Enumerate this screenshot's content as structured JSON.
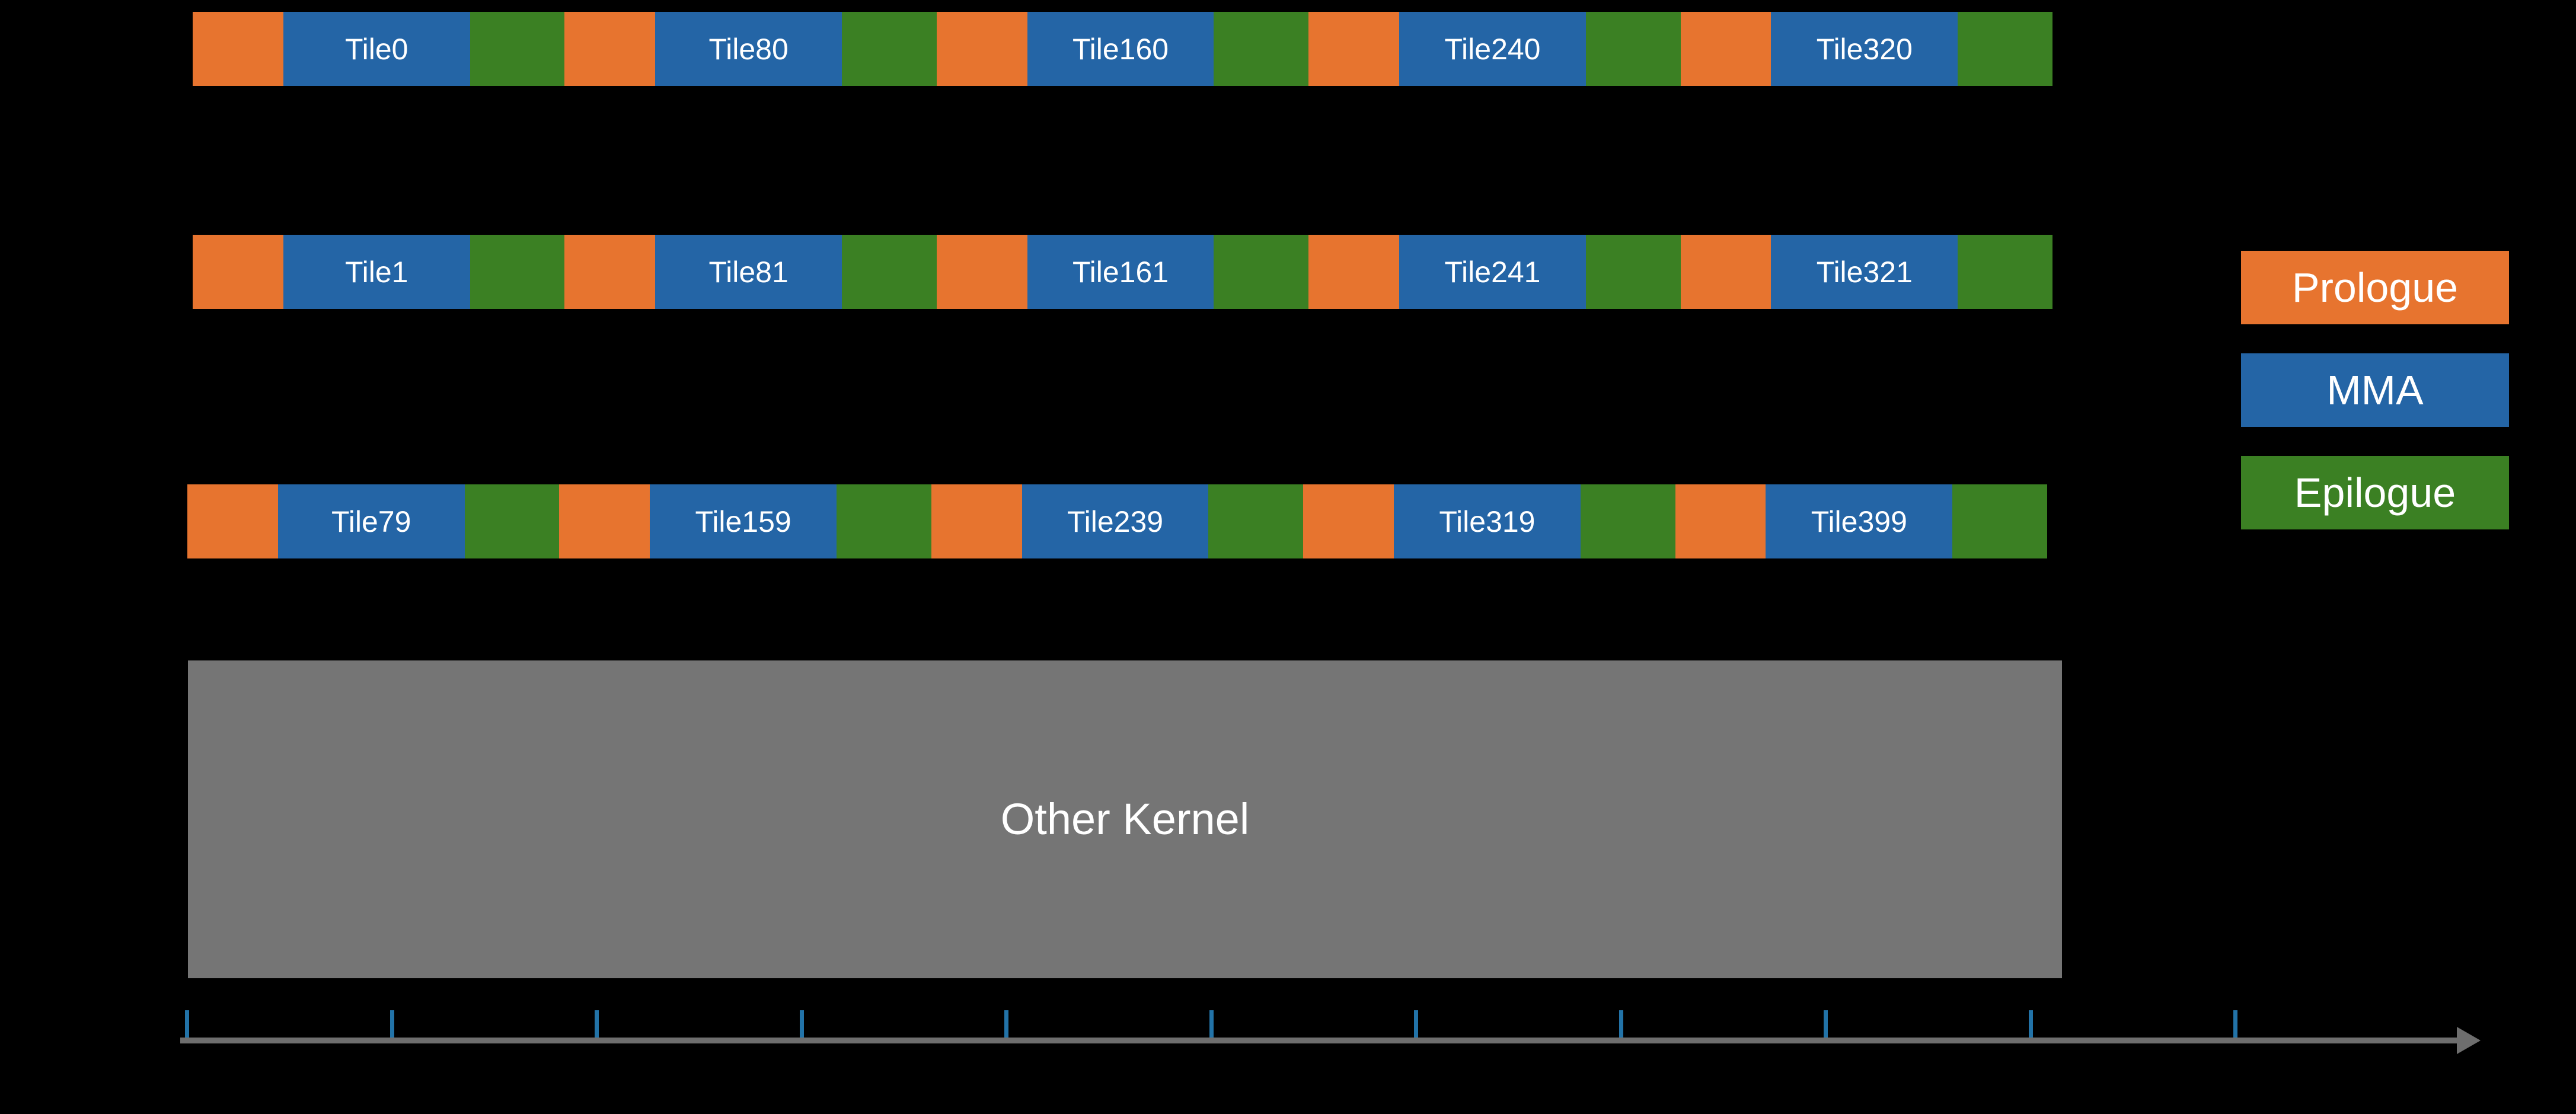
{
  "colors": {
    "background": "#000000",
    "prologue": "#E7742F",
    "mma": "#2465A6",
    "epilogue": "#3B8023",
    "other-kernel": "#757575",
    "axis-line": "#6E6E6E",
    "axis-tick": "#2273A8",
    "label-text": "#FFFFFF"
  },
  "rows": [
    {
      "tiles": [
        "Tile0",
        "Tile80",
        "Tile160",
        "Tile240",
        "Tile320"
      ]
    },
    {
      "tiles": [
        "Tile1",
        "Tile81",
        "Tile161",
        "Tile241",
        "Tile321"
      ]
    },
    {
      "tiles": [
        "Tile79",
        "Tile159",
        "Tile239",
        "Tile319",
        "Tile399"
      ]
    }
  ],
  "other_kernel": {
    "label": "Other Kernel"
  },
  "legend": {
    "items": [
      {
        "label": "Prologue",
        "color": "#E7742F"
      },
      {
        "label": "MMA",
        "color": "#2465A6"
      },
      {
        "label": "Epilogue",
        "color": "#3B8023"
      }
    ]
  },
  "timeline": {
    "tick_count": 11
  }
}
